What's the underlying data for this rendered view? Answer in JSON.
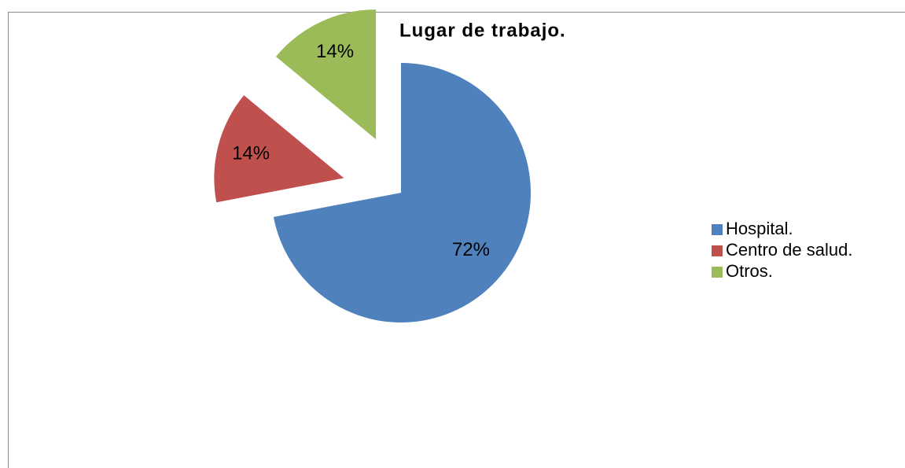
{
  "chart_data": {
    "type": "pie",
    "title": "Lugar de trabajo.",
    "categories": [
      "Hospital.",
      "Centro de salud.",
      "Otros."
    ],
    "values": [
      72,
      14,
      14
    ],
    "value_labels": [
      "72%",
      "14%",
      "14%"
    ],
    "colors": [
      "#4f81bd",
      "#c0504d",
      "#9bbb59"
    ],
    "legend": "right"
  }
}
